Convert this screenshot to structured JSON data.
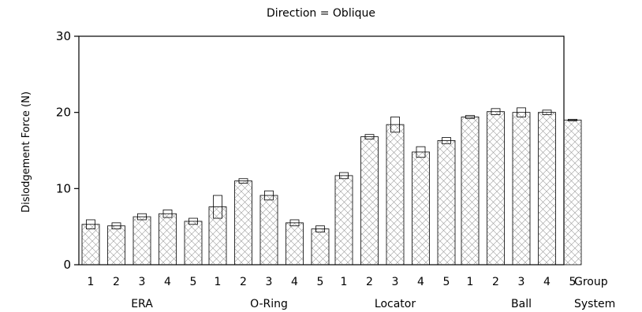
{
  "chart_data": {
    "type": "bar",
    "title": "Direction = Oblique",
    "ylabel": "Dislodgement Force (N)",
    "ylim": [
      0,
      30
    ],
    "yticks": [
      0,
      10,
      20,
      30
    ],
    "grid": false,
    "x_row_labels": [
      "Group",
      "System"
    ],
    "systems": [
      {
        "name": "ERA",
        "groups": [
          {
            "label": "1",
            "value": 5.3,
            "error": 0.6
          },
          {
            "label": "2",
            "value": 5.1,
            "error": 0.4
          },
          {
            "label": "3",
            "value": 6.3,
            "error": 0.4
          },
          {
            "label": "4",
            "value": 6.7,
            "error": 0.5
          },
          {
            "label": "5",
            "value": 5.7,
            "error": 0.4
          }
        ]
      },
      {
        "name": "O-Ring",
        "groups": [
          {
            "label": "1",
            "value": 7.6,
            "error": 1.5
          },
          {
            "label": "2",
            "value": 11.0,
            "error": 0.3
          },
          {
            "label": "3",
            "value": 9.1,
            "error": 0.6
          },
          {
            "label": "4",
            "value": 5.5,
            "error": 0.4
          },
          {
            "label": "5",
            "value": 4.7,
            "error": 0.4
          }
        ]
      },
      {
        "name": "Locator",
        "groups": [
          {
            "label": "1",
            "value": 11.7,
            "error": 0.4
          },
          {
            "label": "2",
            "value": 16.8,
            "error": 0.3
          },
          {
            "label": "3",
            "value": 18.4,
            "error": 1.0
          },
          {
            "label": "4",
            "value": 14.8,
            "error": 0.7
          },
          {
            "label": "5",
            "value": 16.3,
            "error": 0.4
          }
        ]
      },
      {
        "name": "Ball",
        "groups": [
          {
            "label": "1",
            "value": 19.4,
            "error": 0.2
          },
          {
            "label": "2",
            "value": 20.1,
            "error": 0.4
          },
          {
            "label": "3",
            "value": 20.0,
            "error": 0.6
          },
          {
            "label": "4",
            "value": 20.0,
            "error": 0.3
          },
          {
            "label": "5",
            "value": 19.0,
            "error": 0.1
          }
        ]
      }
    ]
  }
}
